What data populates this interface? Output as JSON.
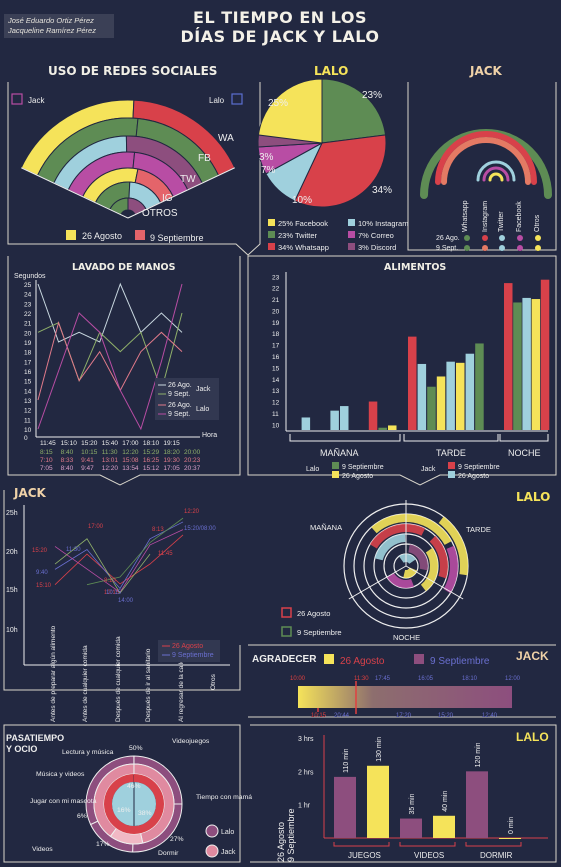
{
  "authors": [
    "José Eduardo Ortiz Pérez",
    "Jacqueline Ramírez Pérez"
  ],
  "title_line1": "EL TIEMPO EN LOS",
  "title_line2": "DÍAS DE JACK Y LALO",
  "colors": {
    "bg": "#222841",
    "yellow": "#f5e35a",
    "red": "#d8414a",
    "green": "#5e8c54",
    "lightblue": "#9fd0dd",
    "purple": "#8d4e7e",
    "magenta": "#b84da4",
    "line": "#e8e6e0"
  },
  "legend_dates": {
    "d1": "26 Agosto",
    "d2": "9 Septiembre",
    "d1_short": "26 Ago.",
    "d2_short": "9 Sept."
  },
  "social": {
    "title": "USO DE REDES SOCIALES",
    "jack": "Jack",
    "lalo": "Lalo",
    "arc_labels": [
      "WA",
      "FB",
      "TW",
      "IG",
      "OTROS"
    ],
    "chart_data": {
      "type": "radial-fan",
      "categories": [
        "WA",
        "FB",
        "TW",
        "IG",
        "OTROS"
      ]
    }
  },
  "lalo_pie": {
    "title": "LALO",
    "chart_data": {
      "type": "pie",
      "slices": [
        {
          "name": "Facebook",
          "value": 25,
          "color": "#f5e35a",
          "label": "25%"
        },
        {
          "name": "Whatsapp",
          "value": 34,
          "color": "#d8414a",
          "label": "34%"
        },
        {
          "name": "Instagram",
          "value": 10,
          "color": "#9fd0dd",
          "label": "10%"
        },
        {
          "name": "Correo",
          "value": 7,
          "color": "#b84da4",
          "label": "7%"
        },
        {
          "name": "Discord",
          "value": 3,
          "color": "#8d4e7e",
          "label": "3%"
        },
        {
          "name": "Twitter",
          "value": 23,
          "color": "#5e8c54",
          "label": "23%"
        }
      ]
    },
    "legend": [
      "25% Facebook",
      "10% Instagram",
      "23% Twitter",
      "7% Correo",
      "34% Whatsapp",
      "3% Discord"
    ]
  },
  "jack_social": {
    "title": "JACK",
    "categories": [
      "Whatsapp",
      "Instagram",
      "Twitter",
      "Facebook",
      "Otros"
    ],
    "row1": "26 Ago.",
    "row2": "9 Sept."
  },
  "handwash": {
    "title": "LAVADO DE MANOS",
    "ylabel": "Segundos",
    "xlabel": "Hora",
    "chart_data": {
      "type": "line",
      "y_ticks": [
        0,
        10,
        11,
        12,
        13,
        14,
        15,
        16,
        17,
        18,
        19,
        20,
        21,
        22,
        23,
        24,
        25
      ],
      "x_ticks": [
        "11:45",
        "15:10",
        "15:20",
        "15:40",
        "17:00",
        "18:10",
        "19:15"
      ],
      "time_rows": [
        [
          "8:15",
          "8:40",
          "10:15",
          "11:30",
          "12:20",
          "15:29",
          "18:20",
          "20:00"
        ],
        [
          "7:10",
          "8:33",
          "9:41",
          "13:01",
          "15:08",
          "16:25",
          "19:30",
          "20:23"
        ],
        [
          "7:05",
          "8:40",
          "9:47",
          "12:20",
          "13:54",
          "15:12",
          "17:05",
          "20:37"
        ]
      ],
      "series": [
        {
          "name": "26 Ago. Jack",
          "values": [
            25,
            19,
            20,
            19,
            25,
            20,
            22,
            20
          ]
        },
        {
          "name": "9 Sept. Jack",
          "values": [
            20,
            21,
            15,
            20,
            18,
            20,
            14,
            22
          ]
        },
        {
          "name": "26 Ago. Lalo",
          "values": [
            13,
            21,
            15,
            18,
            14,
            18,
            20,
            18
          ]
        },
        {
          "name": "9 Sept. Lalo",
          "values": [
            10,
            16,
            22,
            20,
            14,
            10,
            17,
            25
          ]
        }
      ]
    },
    "legend": [
      "26 Ago.",
      "9 Sept.",
      "26 Ago.",
      "9 Sept."
    ],
    "legend_jack": "Jack",
    "legend_lalo": "Lalo"
  },
  "food": {
    "title": "ALIMENTOS",
    "chart_data": {
      "type": "bar",
      "y_ticks": [
        10,
        11,
        12,
        13,
        14,
        15,
        16,
        17,
        18,
        19,
        20,
        21,
        22,
        23
      ],
      "categories": [
        "MAÑANA",
        "TARDE",
        "NOCHE"
      ],
      "series": [
        {
          "name": "Jack 9 Septiembre",
          "color": "#d8414a",
          "values": [
            [
              9.2,
              11.5,
              12.0
            ],
            [
              17.7
            ],
            [
              22.4
            ]
          ]
        },
        {
          "name": "Jack 26 Agosto",
          "color": "#9fd0dd",
          "values": [
            [
              10.6,
              11.6,
              9.8
            ],
            [
              15.3,
              15.5,
              16.2
            ],
            [
              21.1
            ]
          ]
        },
        {
          "name": "Lalo 9 Septiembre",
          "color": "#5e8c54",
          "values": [
            [
              8.4,
              8.8,
              9.7
            ],
            [
              13.3,
              15.6,
              17.1
            ],
            [
              20.7
            ]
          ]
        },
        {
          "name": "Lalo 26 Agosto",
          "color": "#f5e35a",
          "values": [
            [
              7.6,
              8.4,
              9.9
            ],
            [
              14.2,
              15.4
            ],
            [
              21.0
            ]
          ]
        }
      ]
    },
    "lalo": "Lalo",
    "jack": "Jack",
    "leg_9": "9 Septiembre",
    "leg_26": "26 Agosto"
  },
  "jack_routine": {
    "title": "JACK",
    "y_ticks": [
      "25h",
      "20h",
      "15h",
      "10h"
    ],
    "categories": [
      "Antes de preparar algún alimento",
      "Antes de cualquier comida",
      "Después de cualquier comida",
      "Después de ir al sanitario",
      "Al regresar de la calle",
      "Otros"
    ],
    "labels_aug": [
      "17:00",
      "15:20",
      "15:10",
      "11:45",
      "10:15",
      "8:10",
      "8:13",
      "12:20"
    ],
    "labels_sep": [
      "11:30",
      "9:40",
      "10:15",
      "14:00",
      "15:20/08:00"
    ],
    "legend": [
      "26 Agosto",
      "9 Septiembre"
    ]
  },
  "lalo_radial": {
    "title": "LALO",
    "labels": [
      "MAÑANA",
      "TARDE",
      "NOCHE"
    ],
    "legend": [
      "26 Agosto",
      "9 Septiembre"
    ]
  },
  "gratitude": {
    "title": "AGRADECER",
    "who": "JACK",
    "legend": [
      "26 Agosto",
      "9 Septiembre"
    ],
    "top_times": [
      "10:00",
      "11:30",
      "17:45",
      "16:05",
      "18:10",
      "12:00"
    ],
    "bottom_times": [
      "10:15",
      "20:44",
      "17:20",
      "15:20",
      "12:40"
    ]
  },
  "leisure": {
    "title_line1": "PASATIEMPO",
    "title_line2": "Y OCIO",
    "labels": [
      "Lectura y música",
      "Videojuegos",
      "Música y videos",
      "Jugar con mi mascota",
      "Tiempo con mamá",
      "Videos",
      "Dormir"
    ],
    "values_outer": [
      "50%",
      "6%",
      "27%",
      "17%"
    ],
    "values_inner": [
      "46%",
      "16%",
      "38%"
    ],
    "legend": [
      "Lalo",
      "Jack"
    ]
  },
  "lalo_bars": {
    "title": "LALO",
    "chart_data": {
      "type": "bar",
      "y_ticks": [
        "3 hrs",
        "2 hrs",
        "1 hr"
      ],
      "categories": [
        "JUEGOS",
        "VIDEOS",
        "DORMIR"
      ],
      "series": [
        {
          "name": "26 Agosto",
          "values": [
            110,
            35,
            120
          ],
          "labels": [
            "110 min",
            "35 min",
            "120 min"
          ]
        },
        {
          "name": "9 Septiembre",
          "values": [
            130,
            40,
            0
          ],
          "labels": [
            "130 min",
            "40 min",
            "0 min"
          ]
        }
      ]
    },
    "legend": [
      "26 Agosto",
      "9 Septiembre"
    ]
  }
}
